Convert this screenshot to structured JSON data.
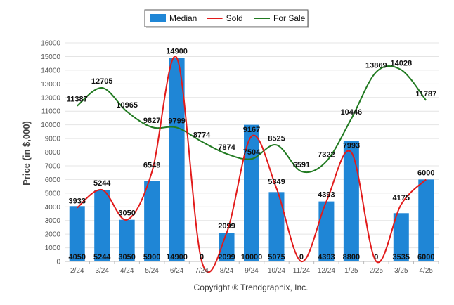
{
  "chart_data": {
    "type": "bar",
    "categories": [
      "2/24",
      "3/24",
      "4/24",
      "5/24",
      "6/24",
      "7/24",
      "8/24",
      "9/24",
      "10/24",
      "11/24",
      "12/24",
      "1/25",
      "2/25",
      "3/25",
      "4/25"
    ],
    "ylabel": "Price (in $,000)",
    "ylim": [
      0,
      16000
    ],
    "yticks": [
      0,
      1000,
      2000,
      3000,
      4000,
      5000,
      6000,
      7000,
      8000,
      9000,
      10000,
      11000,
      12000,
      13000,
      14000,
      15000,
      16000
    ],
    "grid": true,
    "legend_position": "top",
    "series": [
      {
        "name": "Median",
        "kind": "bar",
        "color": "#1f86d6",
        "values": [
          4050,
          5244,
          3050,
          5900,
          14900,
          0,
          2099,
          10000,
          5075,
          0,
          4393,
          8800,
          0,
          3535,
          6000
        ]
      },
      {
        "name": "Sold",
        "kind": "line",
        "color": "#e21b1b",
        "values": [
          3933,
          5244,
          3050,
          6549,
          14900,
          0,
          2099,
          9167,
          5349,
          0,
          4393,
          7993,
          0,
          4175,
          6000
        ]
      },
      {
        "name": "For Sale",
        "kind": "line",
        "color": "#217a21",
        "values": [
          11387,
          12705,
          10965,
          9827,
          9799,
          8774,
          7874,
          7504,
          8525,
          6591,
          7322,
          10446,
          13869,
          14028,
          11787
        ]
      }
    ],
    "footer": "Copyright ® Trendgraphix, Inc."
  }
}
